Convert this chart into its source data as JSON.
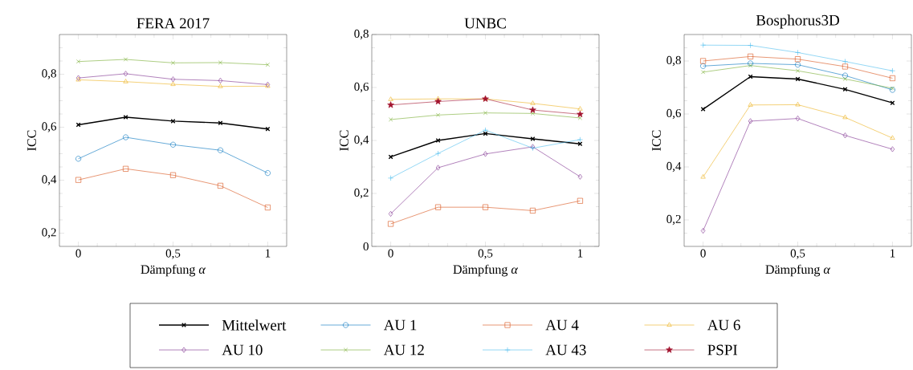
{
  "chart_data": [
    {
      "type": "line",
      "title": "FERA 2017",
      "xlabel": "Dämpfung *α*",
      "ylabel": "ICC",
      "x": [
        0,
        0.25,
        0.5,
        0.75,
        1
      ],
      "xlim": [
        -0.1,
        1.1
      ],
      "ylim": [
        0.15,
        0.95
      ],
      "xticks": [
        {
          "value": 0,
          "label": "0"
        },
        {
          "value": 0.1,
          "label": null
        },
        {
          "value": 0.2,
          "label": null
        },
        {
          "value": 0.3,
          "label": null
        },
        {
          "value": 0.4,
          "label": null
        },
        {
          "value": 0.5,
          "label": "0,5"
        },
        {
          "value": 0.6,
          "label": null
        },
        {
          "value": 0.7,
          "label": null
        },
        {
          "value": 0.8,
          "label": null
        },
        {
          "value": 0.9,
          "label": null
        },
        {
          "value": 1,
          "label": "1"
        }
      ],
      "yticks": [
        {
          "value": 0.2,
          "label": "0,2"
        },
        {
          "value": 0.25,
          "label": null
        },
        {
          "value": 0.3,
          "label": null
        },
        {
          "value": 0.35,
          "label": null
        },
        {
          "value": 0.4,
          "label": "0,4"
        },
        {
          "value": 0.45,
          "label": null
        },
        {
          "value": 0.5,
          "label": null
        },
        {
          "value": 0.55,
          "label": null
        },
        {
          "value": 0.6,
          "label": "0,6"
        },
        {
          "value": 0.65,
          "label": null
        },
        {
          "value": 0.7,
          "label": null
        },
        {
          "value": 0.75,
          "label": null
        },
        {
          "value": 0.8,
          "label": "0,8"
        },
        {
          "value": 0.85,
          "label": null
        },
        {
          "value": 0.9,
          "label": null
        }
      ],
      "grid": false,
      "line_style": "solid",
      "legend": "bottom",
      "series": [
        {
          "name": "Mittelwert",
          "color": "#000000",
          "marker": "cross",
          "values": [
            0.609,
            0.638,
            0.623,
            0.616,
            0.593
          ]
        },
        {
          "name": "AU 1",
          "color": "#0072bd",
          "marker": "circle",
          "values": [
            0.481,
            0.562,
            0.534,
            0.513,
            0.427
          ]
        },
        {
          "name": "AU 4",
          "color": "#d95319",
          "marker": "square",
          "values": [
            0.401,
            0.443,
            0.419,
            0.379,
            0.297
          ]
        },
        {
          "name": "AU 6",
          "color": "#edb120",
          "marker": "triangle",
          "values": [
            0.779,
            0.772,
            0.762,
            0.754,
            0.755
          ]
        },
        {
          "name": "AU 10",
          "color": "#7e2f8e",
          "marker": "diamond",
          "values": [
            0.786,
            0.802,
            0.781,
            0.776,
            0.761
          ]
        },
        {
          "name": "AU 12",
          "color": "#77ac30",
          "marker": "cross",
          "values": [
            0.848,
            0.856,
            0.843,
            0.844,
            0.836
          ]
        }
      ]
    },
    {
      "type": "line",
      "title": "UNBC",
      "xlabel": "Dämpfung *α*",
      "ylabel": "ICC",
      "x": [
        0,
        0.25,
        0.5,
        0.75,
        1
      ],
      "xlim": [
        -0.1,
        1.1
      ],
      "ylim": [
        0,
        0.8
      ],
      "xticks": [
        {
          "value": 0,
          "label": "0"
        },
        {
          "value": 0.1,
          "label": null
        },
        {
          "value": 0.2,
          "label": null
        },
        {
          "value": 0.3,
          "label": null
        },
        {
          "value": 0.4,
          "label": null
        },
        {
          "value": 0.5,
          "label": "0,5"
        },
        {
          "value": 0.6,
          "label": null
        },
        {
          "value": 0.7,
          "label": null
        },
        {
          "value": 0.8,
          "label": null
        },
        {
          "value": 0.9,
          "label": null
        },
        {
          "value": 1,
          "label": "1"
        }
      ],
      "yticks": [
        {
          "value": 0,
          "label": "0"
        },
        {
          "value": 0.05,
          "label": null
        },
        {
          "value": 0.1,
          "label": null
        },
        {
          "value": 0.15,
          "label": null
        },
        {
          "value": 0.2,
          "label": "0,2"
        },
        {
          "value": 0.25,
          "label": null
        },
        {
          "value": 0.3,
          "label": null
        },
        {
          "value": 0.35,
          "label": null
        },
        {
          "value": 0.4,
          "label": "0,4"
        },
        {
          "value": 0.45,
          "label": null
        },
        {
          "value": 0.5,
          "label": null
        },
        {
          "value": 0.55,
          "label": null
        },
        {
          "value": 0.6,
          "label": "0,6"
        },
        {
          "value": 0.65,
          "label": null
        },
        {
          "value": 0.7,
          "label": null
        },
        {
          "value": 0.75,
          "label": null
        },
        {
          "value": 0.8,
          "label": "0,8"
        }
      ],
      "grid": false,
      "line_style": "solid",
      "legend": "bottom",
      "series": [
        {
          "color": "#000000",
          "marker": "cross",
          "values": [
            0.338,
            0.4,
            0.426,
            0.406,
            0.387
          ]
        },
        {
          "color": "#d95319",
          "marker": "square",
          "values": [
            0.085,
            0.148,
            0.148,
            0.135,
            0.172
          ]
        },
        {
          "color": "#edb120",
          "marker": "triangle",
          "values": [
            0.555,
            0.557,
            0.557,
            0.54,
            0.519
          ]
        },
        {
          "color": "#7e2f8e",
          "marker": "diamond",
          "values": [
            0.123,
            0.297,
            0.349,
            0.376,
            0.263
          ]
        },
        {
          "color": "#77ac30",
          "marker": "cross",
          "values": [
            0.479,
            0.496,
            0.504,
            0.502,
            0.485
          ]
        },
        {
          "name": "AU 43",
          "color": "#4dbeee",
          "marker": "plus",
          "values": [
            0.258,
            0.351,
            0.439,
            0.371,
            0.403
          ]
        },
        {
          "name": "PSPI",
          "color": "#a2142f",
          "marker": "star",
          "values": [
            0.534,
            0.547,
            0.557,
            0.515,
            0.499
          ]
        }
      ]
    },
    {
      "type": "line",
      "title": "Bosphorus3D",
      "xlabel": "Dämpfung *α*",
      "ylabel": "ICC",
      "x": [
        0,
        0.25,
        0.5,
        0.75,
        1
      ],
      "xlim": [
        -0.1,
        1.1
      ],
      "ylim": [
        0.1,
        0.9
      ],
      "xticks": [
        {
          "value": 0,
          "label": "0"
        },
        {
          "value": 0.1,
          "label": null
        },
        {
          "value": 0.2,
          "label": null
        },
        {
          "value": 0.3,
          "label": null
        },
        {
          "value": 0.4,
          "label": null
        },
        {
          "value": 0.5,
          "label": "0,5"
        },
        {
          "value": 0.6,
          "label": null
        },
        {
          "value": 0.7,
          "label": null
        },
        {
          "value": 0.8,
          "label": null
        },
        {
          "value": 0.9,
          "label": null
        },
        {
          "value": 1,
          "label": "1"
        }
      ],
      "yticks": [
        {
          "value": 0.15,
          "label": null
        },
        {
          "value": 0.2,
          "label": "0,2"
        },
        {
          "value": 0.25,
          "label": null
        },
        {
          "value": 0.3,
          "label": null
        },
        {
          "value": 0.35,
          "label": null
        },
        {
          "value": 0.4,
          "label": "0,4"
        },
        {
          "value": 0.45,
          "label": null
        },
        {
          "value": 0.5,
          "label": null
        },
        {
          "value": 0.55,
          "label": null
        },
        {
          "value": 0.6,
          "label": "0,6"
        },
        {
          "value": 0.65,
          "label": null
        },
        {
          "value": 0.7,
          "label": null
        },
        {
          "value": 0.75,
          "label": null
        },
        {
          "value": 0.8,
          "label": "0,8"
        },
        {
          "value": 0.85,
          "label": null
        }
      ],
      "grid": false,
      "line_style": "solid",
      "series": [
        {
          "color": "#000000",
          "marker": "cross",
          "values": [
            0.618,
            0.741,
            0.732,
            0.693,
            0.642
          ]
        },
        {
          "color": "#0072bd",
          "marker": "circle",
          "values": [
            0.781,
            0.791,
            0.786,
            0.745,
            0.691
          ]
        },
        {
          "color": "#d95319",
          "marker": "square",
          "values": [
            0.8,
            0.817,
            0.807,
            0.779,
            0.735
          ]
        },
        {
          "color": "#edb120",
          "marker": "triangle",
          "values": [
            0.362,
            0.634,
            0.635,
            0.587,
            0.509
          ]
        },
        {
          "color": "#7e2f8e",
          "marker": "diamond",
          "values": [
            0.159,
            0.573,
            0.583,
            0.519,
            0.467
          ]
        },
        {
          "color": "#77ac30",
          "marker": "cross",
          "values": [
            0.758,
            0.783,
            0.763,
            0.732,
            0.697
          ]
        },
        {
          "color": "#4dbeee",
          "marker": "plus",
          "values": [
            0.86,
            0.859,
            0.832,
            0.798,
            0.763
          ]
        }
      ]
    }
  ]
}
